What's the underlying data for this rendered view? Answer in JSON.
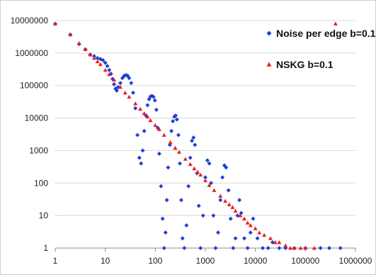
{
  "chart_data": {
    "type": "scatter",
    "title": "",
    "xlabel": "",
    "ylabel": "",
    "x_scale": "log",
    "y_scale": "log",
    "xlim": [
      1,
      1000000
    ],
    "ylim": [
      1,
      10000000
    ],
    "x_tick_labels": [
      "1",
      "10",
      "100",
      "1000",
      "10000",
      "100000",
      "1000000"
    ],
    "y_tick_labels": [
      "1",
      "10",
      "100",
      "1000",
      "10000",
      "100000",
      "1000000",
      "10000000"
    ],
    "grid": "horizontal",
    "legend_position": "top-right",
    "series": [
      {
        "name": "Noise per edge b=0.1",
        "marker": "diamond",
        "color": "#1f3fd6",
        "points": [
          [
            1,
            8000000
          ],
          [
            2,
            3700000
          ],
          [
            3,
            1900000
          ],
          [
            4,
            1300000
          ],
          [
            5,
            900000
          ],
          [
            6,
            800000
          ],
          [
            7,
            700000
          ],
          [
            8,
            650000
          ],
          [
            9,
            600000
          ],
          [
            10,
            500000
          ],
          [
            11,
            400000
          ],
          [
            12,
            300000
          ],
          [
            13,
            230000
          ],
          [
            14,
            160000
          ],
          [
            15,
            110000
          ],
          [
            16,
            80000
          ],
          [
            17,
            70000
          ],
          [
            18,
            90000
          ],
          [
            20,
            120000
          ],
          [
            22,
            170000
          ],
          [
            24,
            200000
          ],
          [
            26,
            210000
          ],
          [
            28,
            200000
          ],
          [
            30,
            170000
          ],
          [
            33,
            120000
          ],
          [
            36,
            60000
          ],
          [
            40,
            20000
          ],
          [
            44,
            3000
          ],
          [
            48,
            600
          ],
          [
            52,
            400
          ],
          [
            56,
            1000
          ],
          [
            60,
            4000
          ],
          [
            65,
            12000
          ],
          [
            70,
            25000
          ],
          [
            75,
            38000
          ],
          [
            80,
            46000
          ],
          [
            86,
            48000
          ],
          [
            92,
            45000
          ],
          [
            98,
            35000
          ],
          [
            105,
            18000
          ],
          [
            112,
            5000
          ],
          [
            120,
            800
          ],
          [
            130,
            80
          ],
          [
            140,
            8
          ],
          [
            150,
            1
          ],
          [
            160,
            3
          ],
          [
            170,
            30
          ],
          [
            180,
            300
          ],
          [
            195,
            1500
          ],
          [
            210,
            4000
          ],
          [
            225,
            8000
          ],
          [
            240,
            11000
          ],
          [
            255,
            12000
          ],
          [
            270,
            9000
          ],
          [
            290,
            3000
          ],
          [
            310,
            400
          ],
          [
            330,
            30
          ],
          [
            350,
            2
          ],
          [
            380,
            1
          ],
          [
            420,
            5
          ],
          [
            460,
            80
          ],
          [
            500,
            600
          ],
          [
            540,
            2000
          ],
          [
            580,
            2500
          ],
          [
            620,
            1500
          ],
          [
            680,
            200
          ],
          [
            740,
            20
          ],
          [
            800,
            1
          ],
          [
            900,
            10
          ],
          [
            1000,
            150
          ],
          [
            1100,
            500
          ],
          [
            1200,
            400
          ],
          [
            1300,
            100
          ],
          [
            1450,
            10
          ],
          [
            1600,
            1
          ],
          [
            1800,
            3
          ],
          [
            2000,
            30
          ],
          [
            2200,
            150
          ],
          [
            2400,
            350
          ],
          [
            2600,
            300
          ],
          [
            2900,
            60
          ],
          [
            3200,
            8
          ],
          [
            3600,
            1
          ],
          [
            4000,
            2
          ],
          [
            4400,
            10
          ],
          [
            4800,
            30
          ],
          [
            5200,
            12
          ],
          [
            6000,
            2
          ],
          [
            7000,
            1
          ],
          [
            8000,
            3
          ],
          [
            9000,
            8
          ],
          [
            11000,
            2
          ],
          [
            14000,
            1
          ],
          [
            18000,
            1
          ],
          [
            22000,
            1.5
          ],
          [
            30000,
            1
          ],
          [
            40000,
            1
          ],
          [
            60000,
            1
          ],
          [
            100000,
            1
          ],
          [
            200000,
            1
          ],
          [
            300000,
            1
          ],
          [
            500000,
            1
          ]
        ]
      },
      {
        "name": "NSKG b=0.1",
        "marker": "triangle",
        "color": "#e8211c",
        "points": [
          [
            1,
            8000000
          ],
          [
            2,
            3700000
          ],
          [
            3,
            2000000
          ],
          [
            4,
            1300000
          ],
          [
            5,
            900000
          ],
          [
            6,
            700000
          ],
          [
            7,
            550000
          ],
          [
            8,
            450000
          ],
          [
            10,
            300000
          ],
          [
            12,
            220000
          ],
          [
            15,
            150000
          ],
          [
            20,
            90000
          ],
          [
            25,
            60000
          ],
          [
            30,
            45000
          ],
          [
            40,
            28000
          ],
          [
            50,
            19000
          ],
          [
            60,
            14000
          ],
          [
            70,
            11000
          ],
          [
            80,
            8500
          ],
          [
            100,
            6000
          ],
          [
            120,
            4500
          ],
          [
            150,
            3000
          ],
          [
            200,
            1800
          ],
          [
            250,
            1200
          ],
          [
            300,
            900
          ],
          [
            400,
            550
          ],
          [
            500,
            380
          ],
          [
            600,
            280
          ],
          [
            700,
            220
          ],
          [
            800,
            180
          ],
          [
            1000,
            120
          ],
          [
            1200,
            85
          ],
          [
            1500,
            60
          ],
          [
            2000,
            40
          ],
          [
            2500,
            28
          ],
          [
            3000,
            22
          ],
          [
            3500,
            18
          ],
          [
            4000,
            14
          ],
          [
            5000,
            10
          ],
          [
            6000,
            8
          ],
          [
            7000,
            6
          ],
          [
            8000,
            5
          ],
          [
            10000,
            4
          ],
          [
            12000,
            3
          ],
          [
            15000,
            2.5
          ],
          [
            20000,
            2
          ],
          [
            25000,
            1.5
          ],
          [
            30000,
            1.5
          ],
          [
            40000,
            1.2
          ],
          [
            50000,
            1
          ],
          [
            60000,
            1
          ],
          [
            80000,
            1
          ],
          [
            100000,
            1
          ],
          [
            150000,
            1
          ],
          [
            400000,
            8000000
          ]
        ]
      }
    ]
  }
}
